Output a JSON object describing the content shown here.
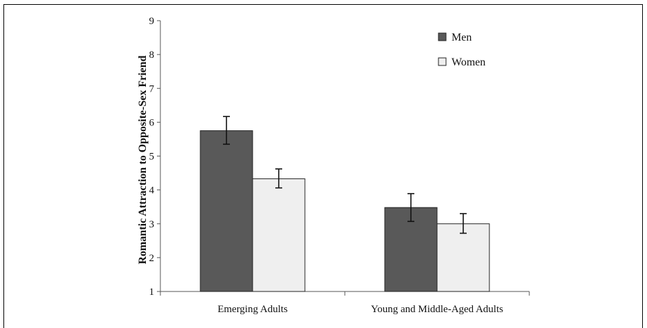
{
  "chart_data": {
    "type": "bar",
    "ylabel": "Romantic Attraction to Opposite-Sex Friend",
    "xlabel": "",
    "ylim": [
      1,
      9
    ],
    "yticks": [
      "1",
      "2",
      "3",
      "4",
      "5",
      "6",
      "7",
      "8",
      "9"
    ],
    "categories": [
      "Emerging Adults",
      "Young and Middle-Aged Adults"
    ],
    "series": [
      {
        "name": "Men",
        "color": "#595959",
        "values": [
          5.75,
          3.48
        ],
        "error_low": [
          5.35,
          3.07
        ],
        "error_high": [
          6.17,
          3.89
        ]
      },
      {
        "name": "Women",
        "color": "#efefef",
        "values": [
          4.33,
          3.0
        ],
        "error_low": [
          4.06,
          2.72
        ],
        "error_high": [
          4.62,
          3.3
        ]
      }
    ],
    "legend": "top-right",
    "grid": false
  }
}
